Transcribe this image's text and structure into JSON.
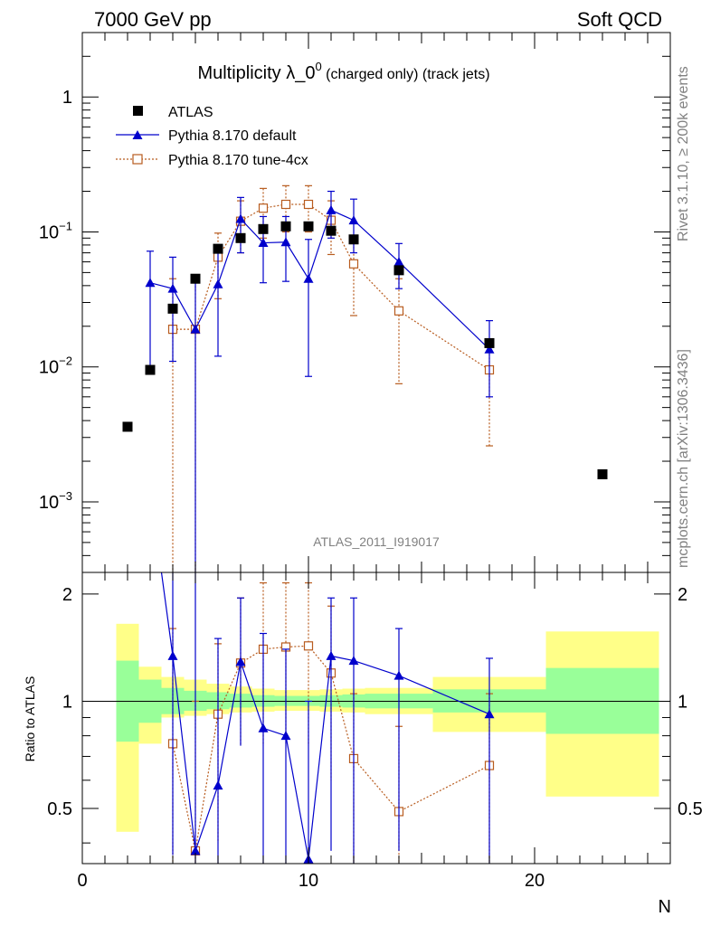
{
  "header": {
    "left": "7000 GeV pp",
    "right": "Soft QCD"
  },
  "side": {
    "rivet": "Rivet 3.1.10, ≥ 200k events",
    "mcplots": "mcplots.cern.ch [arXiv:1306.3436]"
  },
  "chart_data": {
    "type": "scatter",
    "title_main": "Multiplicity λ_0",
    "title_sup": "0",
    "title_sub": " (charged only) (track jets)",
    "analysis_label": "ATLAS_2011_I919017",
    "xlabel": "N",
    "ratio_ylabel": "Ratio to ATLAS",
    "xlim": [
      0,
      26
    ],
    "ylim": [
      0.0003,
      3
    ],
    "yscale": "log",
    "ratio_ylim": [
      0.35,
      2.3
    ],
    "x_ticks": [
      "0",
      "10",
      "20"
    ],
    "ratio_ticks": [
      "0.5",
      "1",
      "2"
    ],
    "legend": [
      "ATLAS",
      "Pythia 8.170 default",
      "Pythia 8.170 tune-4cx"
    ],
    "atlas": {
      "name": "ATLAS",
      "color": "#000000",
      "x": [
        2,
        3,
        4,
        5,
        6,
        7,
        8,
        9,
        10,
        11,
        12,
        14,
        18,
        23
      ],
      "y": [
        0.0036,
        0.0095,
        0.027,
        0.045,
        0.075,
        0.09,
        0.105,
        0.11,
        0.11,
        0.102,
        0.088,
        0.052,
        0.015,
        0.0016
      ]
    },
    "series": [
      {
        "name": "Pythia 8.170 default",
        "color": "#0000cc",
        "x": [
          3,
          4,
          5,
          6,
          7,
          8,
          9,
          10,
          11,
          12,
          14,
          18
        ],
        "y": [
          0.042,
          0.038,
          0.019,
          0.041,
          0.125,
          0.083,
          0.084,
          0.045,
          0.145,
          0.122,
          0.06,
          0.0135
        ],
        "yhi": [
          0.072,
          0.065,
          0.045,
          0.07,
          0.18,
          0.13,
          0.13,
          0.088,
          0.2,
          0.175,
          0.082,
          0.022
        ],
        "ylo": [
          0.0098,
          0.011,
          0.0003,
          0.012,
          0.07,
          0.042,
          0.043,
          0.0085,
          0.09,
          0.07,
          0.038,
          0.006
        ],
        "ratio": [
          null,
          1.34,
          0.38,
          0.58,
          1.29,
          0.84,
          0.8,
          0.36,
          1.34,
          1.3,
          1.18,
          0.92
        ],
        "ratio_hi": [
          null,
          2.3,
          2.3,
          1.5,
          1.95,
          1.55,
          1.4,
          1.0,
          1.95,
          1.95,
          1.6,
          1.32
        ],
        "ratio_lo": [
          null,
          0.37,
          0.35,
          0.35,
          0.75,
          0.35,
          0.35,
          0.35,
          0.38,
          0.35,
          0.38,
          0.35
        ]
      },
      {
        "name": "Pythia 8.170 tune-4cx",
        "color": "#b85c1f",
        "x": [
          4,
          5,
          6,
          7,
          8,
          9,
          10,
          11,
          12,
          14,
          18
        ],
        "y": [
          0.019,
          0.019,
          0.065,
          0.12,
          0.15,
          0.16,
          0.16,
          0.122,
          0.058,
          0.026,
          0.0095
        ],
        "yhi": [
          0.045,
          0.045,
          0.098,
          0.17,
          0.21,
          0.22,
          0.22,
          0.17,
          0.088,
          0.045,
          0.016
        ],
        "ylo": [
          0.0003,
          0.0003,
          0.032,
          0.07,
          0.09,
          0.1,
          0.1,
          0.068,
          0.024,
          0.0075,
          0.0026
        ],
        "ratio": [
          0.76,
          0.38,
          0.92,
          1.28,
          1.4,
          1.42,
          1.43,
          1.2,
          0.69,
          0.49,
          0.66
        ],
        "ratio_hi": [
          1.6,
          1.0,
          1.45,
          1.95,
          2.15,
          2.15,
          2.15,
          1.85,
          1.05,
          0.85,
          1.05
        ],
        "ratio_lo": [
          0.35,
          0.35,
          0.4,
          0.75,
          0.75,
          0.75,
          0.75,
          0.6,
          0.35,
          0.35,
          0.35
        ]
      }
    ],
    "bands": [
      {
        "x0": 1.5,
        "x1": 2.5,
        "stat_lo": 0.77,
        "stat_hi": 1.3,
        "tot_lo": 0.43,
        "tot_hi": 1.65
      },
      {
        "x0": 2.5,
        "x1": 3.5,
        "stat_lo": 0.87,
        "stat_hi": 1.15,
        "tot_lo": 0.76,
        "tot_hi": 1.25
      },
      {
        "x0": 3.5,
        "x1": 4.5,
        "stat_lo": 0.92,
        "stat_hi": 1.09,
        "tot_lo": 0.9,
        "tot_hi": 1.17
      },
      {
        "x0": 4.5,
        "x1": 5.5,
        "stat_lo": 0.94,
        "stat_hi": 1.07,
        "tot_lo": 0.91,
        "tot_hi": 1.15
      },
      {
        "x0": 5.5,
        "x1": 6.5,
        "stat_lo": 0.95,
        "stat_hi": 1.06,
        "tot_lo": 0.92,
        "tot_hi": 1.12
      },
      {
        "x0": 6.5,
        "x1": 7.5,
        "stat_lo": 0.96,
        "stat_hi": 1.05,
        "tot_lo": 0.93,
        "tot_hi": 1.1
      },
      {
        "x0": 7.5,
        "x1": 8.5,
        "stat_lo": 0.965,
        "stat_hi": 1.04,
        "tot_lo": 0.935,
        "tot_hi": 1.085
      },
      {
        "x0": 8.5,
        "x1": 9.5,
        "stat_lo": 0.97,
        "stat_hi": 1.035,
        "tot_lo": 0.94,
        "tot_hi": 1.075
      },
      {
        "x0": 9.5,
        "x1": 10.5,
        "stat_lo": 0.97,
        "stat_hi": 1.035,
        "tot_lo": 0.94,
        "tot_hi": 1.075
      },
      {
        "x0": 10.5,
        "x1": 11.5,
        "stat_lo": 0.965,
        "stat_hi": 1.04,
        "tot_lo": 0.935,
        "tot_hi": 1.08
      },
      {
        "x0": 11.5,
        "x1": 12.5,
        "stat_lo": 0.96,
        "stat_hi": 1.045,
        "tot_lo": 0.93,
        "tot_hi": 1.085
      },
      {
        "x0": 12.5,
        "x1": 15.5,
        "stat_lo": 0.955,
        "stat_hi": 1.05,
        "tot_lo": 0.92,
        "tot_hi": 1.09
      },
      {
        "x0": 15.5,
        "x1": 20.5,
        "stat_lo": 0.93,
        "stat_hi": 1.08,
        "tot_lo": 0.82,
        "tot_hi": 1.17
      },
      {
        "x0": 20.5,
        "x1": 25.5,
        "stat_lo": 0.81,
        "stat_hi": 1.24,
        "tot_lo": 0.54,
        "tot_hi": 1.57
      }
    ]
  }
}
